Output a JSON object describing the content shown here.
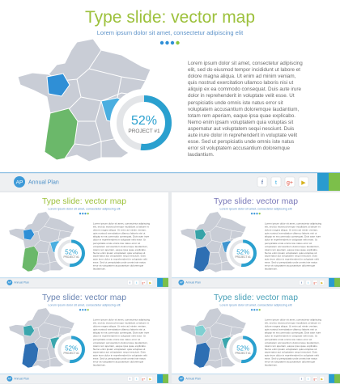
{
  "content": {
    "title": "Type slide: vector map",
    "subtitle": "Lorem ipsum dolor sit amet, consectetur adipiscing elit",
    "body": "Lorem ipsum dolor sit amet, consectetur adipiscing elit, sed do eiusmod tempor incididunt ut labore et dolore magna aliqua. Ut enim ad minim veniam, quis nostrud exercitation ullamco laboris nisi ut aliquip ex ea commodo consequat. Duis aute irure dolor in reprehenderit in voluptate velit esse. Ut perspiciatis unde omnis iste natus error sit voluptatem accusantium doloremque laudantium, totam rem aperiam, eaque ipsa quae explicabo. Nemo enim ipsam voluptatem quia voluptas sit aspernatur aut voluptatem sequi nesciunt. Duis aute irure dolor in reprehenderit in voluptate velit esse. Sed ut perspiciatis unde omnis iste natus error sit voluptatem accusantium doloremque laudantium.",
    "donut": {
      "value": 52,
      "label": "52%",
      "caption": "PROJECT #1"
    },
    "logo": "AP",
    "footer": "Annual Plan",
    "social": [
      "f",
      "t",
      "g+",
      "▶"
    ]
  },
  "slides": [
    {
      "title_color": "#9dc13c",
      "region_colors": [
        "#2f8fd6",
        "#6bb86a",
        "#4aaee0"
      ]
    },
    {
      "title_color": "#9dc13c",
      "region_colors": [
        "#2f8fd6",
        "#6bb86a",
        "#4aaee0"
      ]
    },
    {
      "title_color": "#7a78b8",
      "region_colors": [
        "#37a3a8",
        "#2e6fb3",
        "#3f95cf"
      ]
    },
    {
      "title_color": "#6a84b2",
      "region_colors": [
        "#3aa6ad",
        "#2e6fb3",
        "#3aa6ad"
      ]
    },
    {
      "title_color": "#4aa1b8",
      "region_colors": [
        "#7fd0d2",
        "#2e6fb3",
        "#3aa6ad"
      ]
    }
  ]
}
